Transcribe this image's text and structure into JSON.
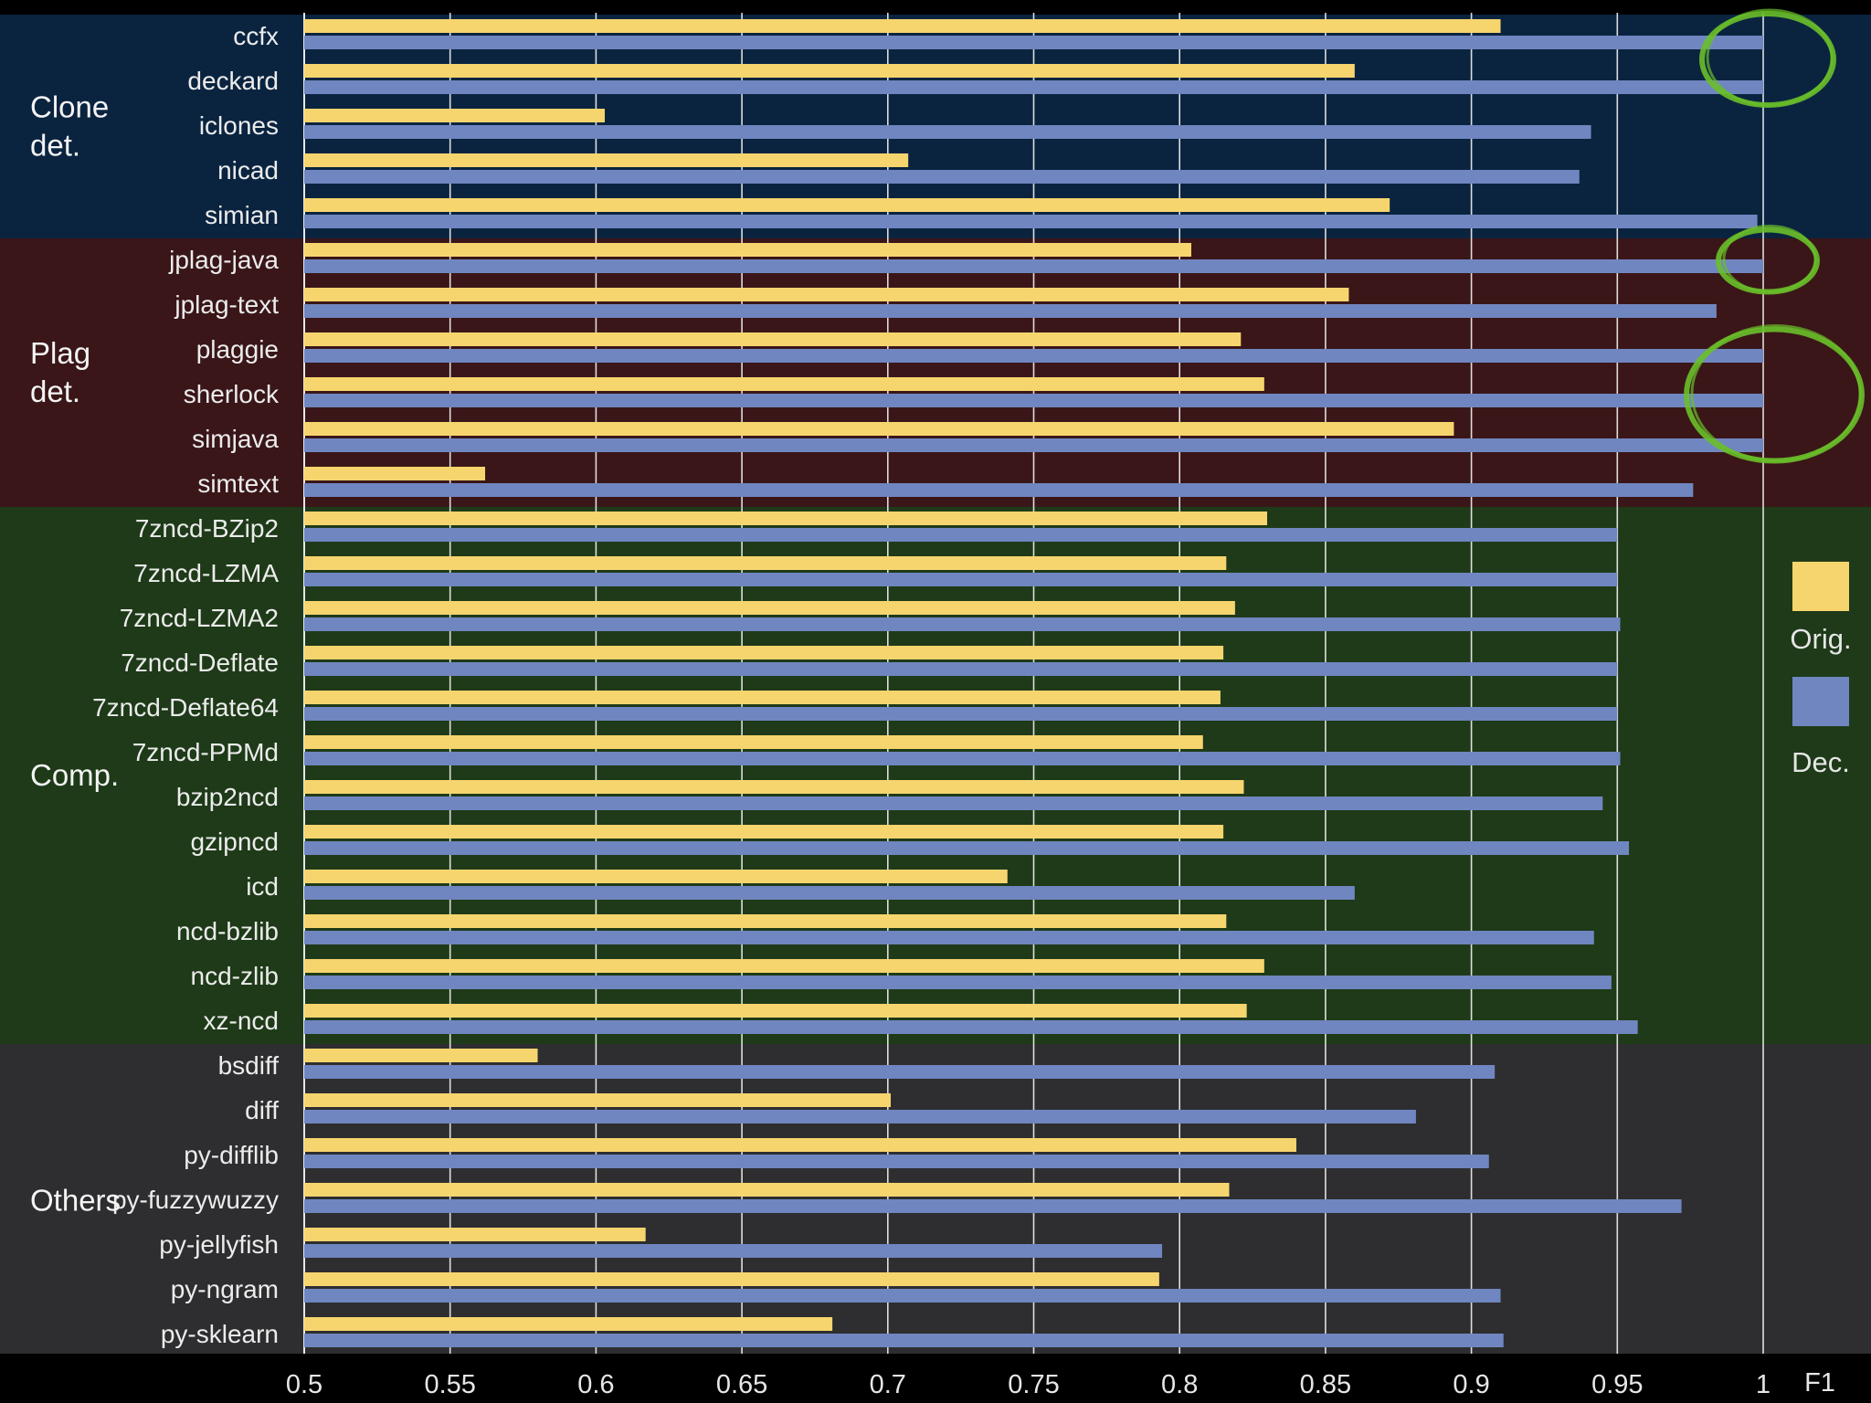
{
  "chart_data": {
    "type": "bar",
    "orientation": "horizontal",
    "title": "",
    "xlabel": "F1",
    "ylabel": "",
    "xlim": [
      0.5,
      1
    ],
    "x_ticks": [
      "0.5",
      "0.55",
      "0.6",
      "0.65",
      "0.7",
      "0.75",
      "0.8",
      "0.85",
      "0.9",
      "0.95",
      "1"
    ],
    "grid": true,
    "legend_position": "right",
    "categories": [
      "ccfx",
      "deckard",
      "iclones",
      "nicad",
      "simian",
      "jplag-java",
      "jplag-text",
      "plaggie",
      "sherlock",
      "simjava",
      "simtext",
      "7zncd-BZip2",
      "7zncd-LZMA",
      "7zncd-LZMA2",
      "7zncd-Deflate",
      "7zncd-Deflate64",
      "7zncd-PPMd",
      "bzip2ncd",
      "gzipncd",
      "icd",
      "ncd-bzlib",
      "ncd-zlib",
      "xz-ncd",
      "bsdiff",
      "diff",
      "py-difflib",
      "py-fuzzywuzzy",
      "py-jellyfish",
      "py-ngram",
      "py-sklearn"
    ],
    "groups": [
      {
        "label": "Clone\ndet.",
        "name": "clone-detectors",
        "start": 0,
        "end": 4,
        "color": "#0a2440"
      },
      {
        "label": "Plag\ndet.",
        "name": "plagiarism-detectors",
        "start": 5,
        "end": 10,
        "color": "#3a1618"
      },
      {
        "label": "Comp.",
        "name": "compression",
        "start": 11,
        "end": 22,
        "color": "#1e3a18"
      },
      {
        "label": "Others",
        "name": "others",
        "start": 23,
        "end": 29,
        "color": "#2e2e30"
      }
    ],
    "series": [
      {
        "name": "Orig.",
        "color": "#f7d56e",
        "values": [
          0.91,
          0.86,
          0.603,
          0.707,
          0.872,
          0.804,
          0.858,
          0.821,
          0.829,
          0.894,
          0.562,
          0.83,
          0.816,
          0.819,
          0.815,
          0.814,
          0.808,
          0.822,
          0.815,
          0.741,
          0.816,
          0.829,
          0.823,
          0.58,
          0.701,
          0.84,
          0.817,
          0.617,
          0.793,
          0.681
        ]
      },
      {
        "name": "Dec.",
        "color": "#7086c0",
        "values": [
          1.0,
          1.0,
          0.941,
          0.937,
          0.998,
          1.0,
          0.984,
          1.0,
          1.0,
          1.0,
          0.976,
          0.95,
          0.95,
          0.951,
          0.95,
          0.95,
          0.951,
          0.945,
          0.954,
          0.86,
          0.942,
          0.948,
          0.957,
          0.908,
          0.881,
          0.906,
          0.972,
          0.794,
          0.91,
          0.911
        ]
      }
    ],
    "annotations": [
      {
        "type": "circle",
        "name": "clone-det-highlight",
        "color": "#6abf2a",
        "rows": [
          0,
          1
        ]
      },
      {
        "type": "circle",
        "name": "jplag-java-highlight",
        "color": "#6abf2a",
        "rows": [
          5,
          5
        ]
      },
      {
        "type": "circle",
        "name": "plag-det-highlight",
        "color": "#6abf2a",
        "rows": [
          7,
          9
        ]
      }
    ]
  }
}
